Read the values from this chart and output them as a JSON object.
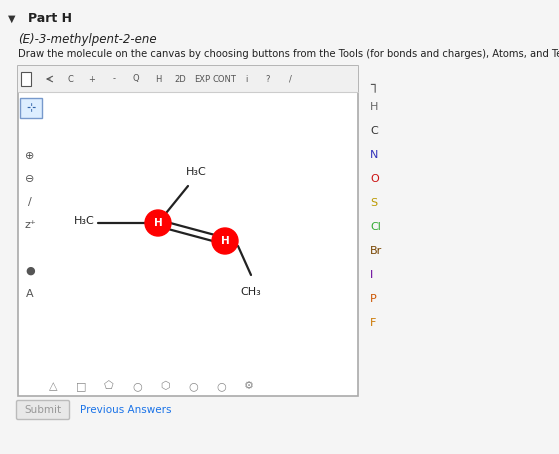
{
  "title": "Part H",
  "subtitle": "(E)-3-methylpent-2-ene",
  "instruction": "Draw the molecule on the canvas by choosing buttons from the Tools (for bonds and charges), Atoms, and Templates toolbars.",
  "page_bg": "#f5f5f5",
  "canvas_bg": "#ffffff",
  "atom_color": "#ff0000",
  "submit_text": "Submit",
  "prev_answers_text": "Previous Answers",
  "right_elements": [
    {
      "label": "H",
      "color": "#666666"
    },
    {
      "label": "C",
      "color": "#333333"
    },
    {
      "label": "N",
      "color": "#3333bb"
    },
    {
      "label": "O",
      "color": "#cc1111"
    },
    {
      "label": "S",
      "color": "#bb9900"
    },
    {
      "label": "Cl",
      "color": "#33aa33"
    },
    {
      "label": "Br",
      "color": "#774400"
    },
    {
      "label": "I",
      "color": "#660099"
    },
    {
      "label": "P",
      "color": "#cc5500"
    },
    {
      "label": "F",
      "color": "#cc7700"
    }
  ]
}
